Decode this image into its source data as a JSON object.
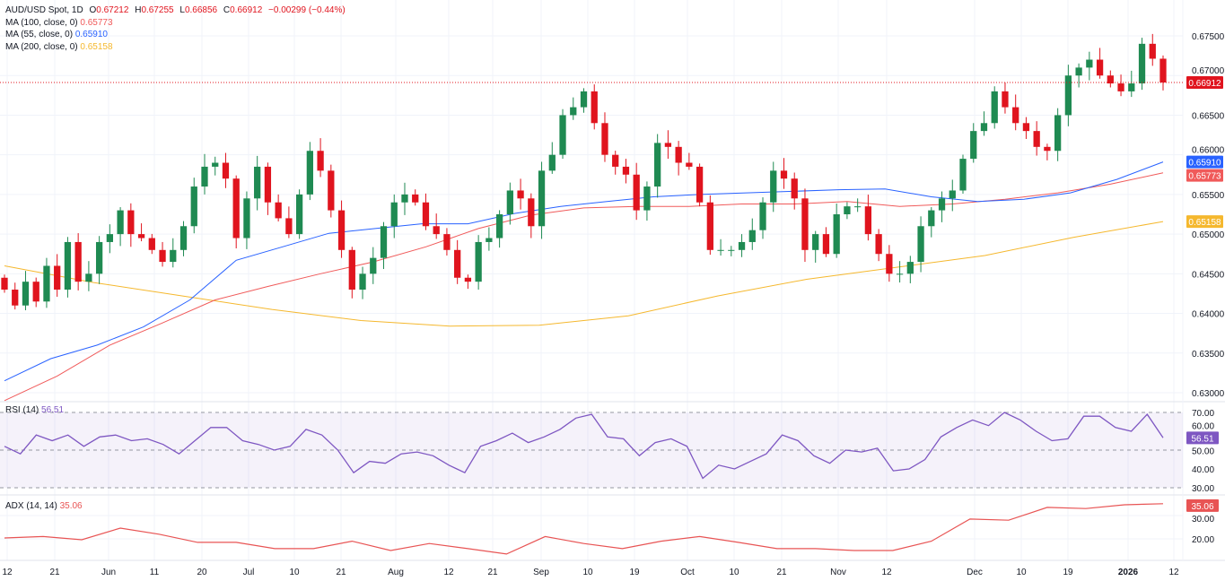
{
  "header": {
    "symbol": "AUD/USD Spot, 1D",
    "o_label": "O",
    "o": "0.67212",
    "h_label": "H",
    "h": "0.67255",
    "l_label": "L",
    "l": "0.66856",
    "c_label": "C",
    "c": "0.66912",
    "change": "−0.00299 (−0.44%)",
    "ma100_label": "MA (100, close, 0)",
    "ma100": "0.65773",
    "ma55_label": "MA (55, close, 0)",
    "ma55": "0.65910",
    "ma200_label": "MA (200, close, 0)",
    "ma200": "0.65158"
  },
  "rsi_panel": {
    "label": "RSI (14)",
    "value": "56.51",
    "ticks": [
      "70.00",
      "60.00",
      "50.00",
      "40.00",
      "30.00"
    ]
  },
  "adx_panel": {
    "label": "ADX (14, 14)",
    "value": "35.06",
    "ticks": [
      "30.00",
      "20.00"
    ]
  },
  "colors": {
    "up": "#1f8a52",
    "down": "#e0141e",
    "ma55": "#2962ff",
    "ma100": "#f05a5a",
    "ma200": "#f5b82e",
    "rsi": "#7e57c2",
    "adx": "#e85454"
  },
  "chart_data": [
    {
      "type": "candlestick",
      "title": "AUD/USD Spot, 1D",
      "ylim": [
        0.6285,
        0.6765
      ],
      "y_ticks": [
        "0.67500",
        "0.67000",
        "0.66500",
        "0.66000",
        "0.65500",
        "0.65000",
        "0.64500",
        "0.64000",
        "0.63500",
        "0.63000"
      ],
      "x_ticks": [
        "12",
        "21",
        "Jun",
        "11",
        "20",
        "Jul",
        "10",
        "21",
        "Aug",
        "12",
        "21",
        "Sep",
        "10",
        "19",
        "Oct",
        "10",
        "21",
        "Nov",
        "12",
        "Dec",
        "10",
        "19",
        "2026",
        "12"
      ],
      "last_price": "0.66912",
      "price_labels": [
        {
          "value": "0.66912",
          "price": 0.66912,
          "color": "#e0141e"
        },
        {
          "value": "0.65910",
          "price": 0.6591,
          "color": "#2962ff"
        },
        {
          "value": "0.65773",
          "price": 0.65773,
          "color": "#f05a5a"
        },
        {
          "value": "0.65158",
          "price": 0.65158,
          "color": "#f5b82e"
        }
      ],
      "close": [
        0.643,
        0.641,
        0.644,
        0.6415,
        0.646,
        0.643,
        0.649,
        0.644,
        0.645,
        0.649,
        0.65,
        0.653,
        0.65,
        0.6495,
        0.648,
        0.6465,
        0.648,
        0.651,
        0.656,
        0.6585,
        0.659,
        0.657,
        0.6495,
        0.6545,
        0.6585,
        0.654,
        0.652,
        0.65,
        0.655,
        0.6605,
        0.658,
        0.653,
        0.648,
        0.643,
        0.645,
        0.647,
        0.651,
        0.654,
        0.655,
        0.654,
        0.651,
        0.65,
        0.648,
        0.6445,
        0.644,
        0.649,
        0.6495,
        0.6525,
        0.6555,
        0.6545,
        0.651,
        0.658,
        0.66,
        0.665,
        0.666,
        0.668,
        0.664,
        0.66,
        0.6585,
        0.6575,
        0.653,
        0.656,
        0.6615,
        0.661,
        0.659,
        0.6585,
        0.654,
        0.648,
        0.648,
        0.648,
        0.649,
        0.6505,
        0.654,
        0.658,
        0.657,
        0.6545,
        0.648,
        0.65,
        0.6475,
        0.6525,
        0.6535,
        0.6535,
        0.65,
        0.6475,
        0.645,
        0.645,
        0.6465,
        0.651,
        0.653,
        0.6545,
        0.6555,
        0.6595,
        0.663,
        0.664,
        0.668,
        0.666,
        0.664,
        0.663,
        0.661,
        0.6605,
        0.665,
        0.67,
        0.671,
        0.672,
        0.67,
        0.669,
        0.668,
        0.669,
        0.674,
        0.67212,
        0.66912
      ],
      "ma55": [
        0.6315,
        0.6343,
        0.636,
        0.6383,
        0.6417,
        0.6467,
        0.6484,
        0.6501,
        0.6507,
        0.6513,
        0.6513,
        0.6526,
        0.6535,
        0.6541,
        0.6547,
        0.655,
        0.6552,
        0.6554,
        0.6556,
        0.6557,
        0.6547,
        0.6541,
        0.6544,
        0.6552,
        0.6569,
        0.6591
      ],
      "ma100": [
        0.629,
        0.6321,
        0.636,
        0.6388,
        0.6417,
        0.6434,
        0.645,
        0.6465,
        0.6484,
        0.6507,
        0.6524,
        0.6533,
        0.6535,
        0.6535,
        0.6538,
        0.6538,
        0.6541,
        0.6535,
        0.6538,
        0.6544,
        0.6552,
        0.6563,
        0.65773
      ],
      "ma200": [
        0.646,
        0.6439,
        0.6422,
        0.6405,
        0.6391,
        0.6384,
        0.6385,
        0.6397,
        0.6422,
        0.6443,
        0.6458,
        0.6473,
        0.6496,
        0.65158
      ]
    },
    {
      "type": "line",
      "title": "RSI (14)",
      "ylim": [
        25,
        75
      ],
      "bands": [
        30,
        50,
        70
      ],
      "values": [
        52,
        48,
        58,
        55,
        58,
        52,
        57,
        58,
        55,
        56,
        53,
        48,
        55,
        62,
        62,
        55,
        53,
        50,
        52,
        61,
        58,
        50,
        38,
        44,
        43,
        48,
        49,
        47,
        42,
        38,
        52,
        55,
        59,
        54,
        57,
        61,
        67,
        69,
        57,
        56,
        47,
        54,
        56,
        52,
        35,
        42,
        40,
        44,
        48,
        58,
        55,
        47,
        43,
        50,
        49,
        51,
        39,
        40,
        45,
        57,
        62,
        66,
        63,
        70,
        66,
        60,
        55,
        56,
        68,
        68,
        62,
        60,
        69,
        56.51
      ]
    },
    {
      "type": "line",
      "title": "ADX (14, 14)",
      "ylim": [
        10,
        38
      ],
      "values": [
        20.4,
        21,
        19.6,
        24.6,
        22,
        18.5,
        18.5,
        15.8,
        15.8,
        19,
        15,
        18,
        15.8,
        13.5,
        21,
        18,
        15.8,
        19,
        21,
        18.5,
        15.8,
        15.8,
        15,
        15,
        19,
        28.5,
        28,
        33.5,
        33,
        34.6,
        35.06
      ]
    }
  ]
}
